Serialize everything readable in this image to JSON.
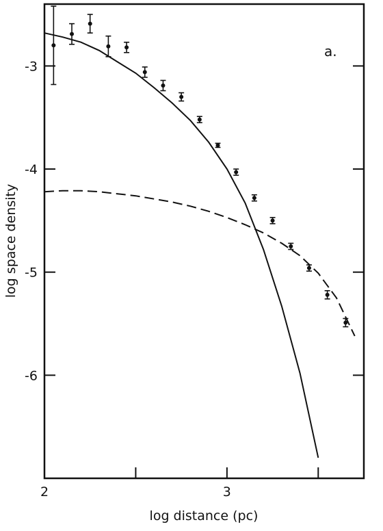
{
  "chart_data": {
    "type": "scatter",
    "panel_label": "a.",
    "xlabel": "log distance (pc)",
    "ylabel": "log space density",
    "xlim": [
      2.0,
      3.75
    ],
    "ylim": [
      -7.0,
      -2.4
    ],
    "x_ticks": [
      {
        "value": 2,
        "label": "2"
      },
      {
        "value": 2.5,
        "label": ""
      },
      {
        "value": 3,
        "label": "3"
      },
      {
        "value": 3.5,
        "label": ""
      }
    ],
    "y_ticks": [
      {
        "value": -3,
        "label": "-3"
      },
      {
        "value": -4,
        "label": "-4"
      },
      {
        "value": -5,
        "label": "-5"
      },
      {
        "value": -6,
        "label": "-6"
      }
    ],
    "points": [
      {
        "x": 2.05,
        "y": -2.8,
        "err": 0.38
      },
      {
        "x": 2.15,
        "y": -2.69,
        "err": 0.1
      },
      {
        "x": 2.25,
        "y": -2.59,
        "err": 0.09
      },
      {
        "x": 2.35,
        "y": -2.81,
        "err": 0.1
      },
      {
        "x": 2.45,
        "y": -2.82,
        "err": 0.05
      },
      {
        "x": 2.55,
        "y": -3.06,
        "err": 0.05
      },
      {
        "x": 2.65,
        "y": -3.19,
        "err": 0.05
      },
      {
        "x": 2.75,
        "y": -3.3,
        "err": 0.04
      },
      {
        "x": 2.85,
        "y": -3.52,
        "err": 0.03
      },
      {
        "x": 2.95,
        "y": -3.77,
        "err": 0.02
      },
      {
        "x": 3.05,
        "y": -4.03,
        "err": 0.03
      },
      {
        "x": 3.15,
        "y": -4.28,
        "err": 0.03
      },
      {
        "x": 3.25,
        "y": -4.5,
        "err": 0.03
      },
      {
        "x": 3.35,
        "y": -4.75,
        "err": 0.03
      },
      {
        "x": 3.45,
        "y": -4.96,
        "err": 0.03
      },
      {
        "x": 3.55,
        "y": -5.22,
        "err": 0.04
      },
      {
        "x": 3.65,
        "y": -5.49,
        "err": 0.04
      }
    ],
    "series": [
      {
        "style": "solid",
        "x": [
          2.0,
          2.1,
          2.2,
          2.3,
          2.4,
          2.5,
          2.6,
          2.7,
          2.8,
          2.9,
          3.0,
          3.1,
          3.2,
          3.3,
          3.4,
          3.5
        ],
        "y": [
          -2.68,
          -2.72,
          -2.77,
          -2.85,
          -2.96,
          -3.07,
          -3.21,
          -3.36,
          -3.53,
          -3.74,
          -4.0,
          -4.33,
          -4.78,
          -5.33,
          -5.98,
          -6.8
        ]
      },
      {
        "style": "dashed",
        "x": [
          2.0,
          2.1,
          2.2,
          2.3,
          2.4,
          2.5,
          2.6,
          2.7,
          2.8,
          2.9,
          3.0,
          3.1,
          3.2,
          3.3,
          3.4,
          3.5,
          3.6,
          3.7
        ],
        "y": [
          -4.22,
          -4.21,
          -4.21,
          -4.22,
          -4.24,
          -4.26,
          -4.29,
          -4.32,
          -4.36,
          -4.41,
          -4.47,
          -4.54,
          -4.62,
          -4.72,
          -4.84,
          -5.01,
          -5.25,
          -5.62
        ]
      }
    ]
  }
}
